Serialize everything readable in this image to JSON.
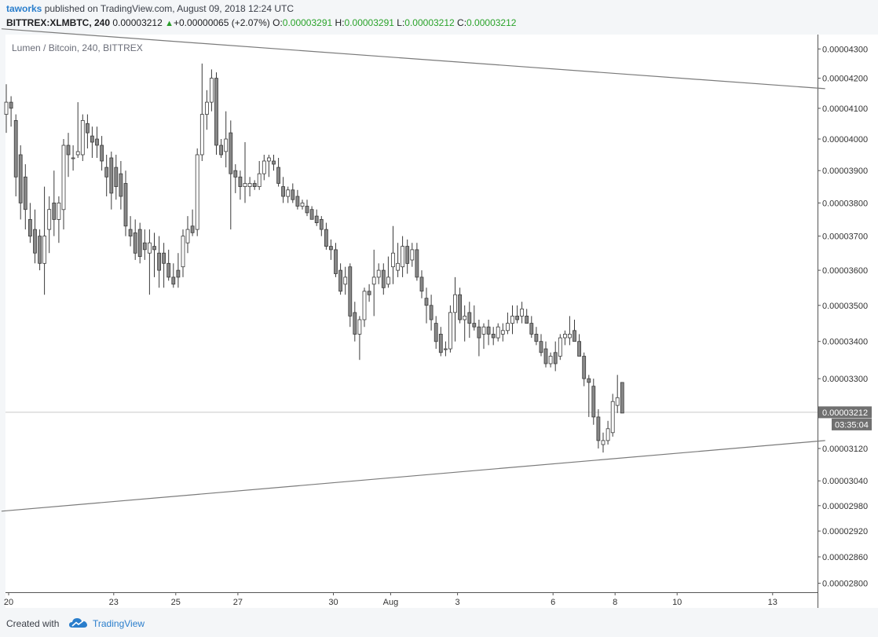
{
  "header": {
    "author": "taworks",
    "published_text": "published on TradingView.com, August 09, 2018 12:24 UTC",
    "symbol": "BITTREX:XLMBTC, 240",
    "last_price": "0.00003212",
    "change_arrow": "▲",
    "change": "+0.00000065 (+2.07%)",
    "o_label": "O:",
    "o_value": "0.00003291",
    "h_label": "H:",
    "h_value": "0.00003291",
    "l_label": "L:",
    "l_value": "0.00003212",
    "c_label": "C:",
    "c_value": "0.00003212"
  },
  "footer": {
    "created_with": "Created with",
    "brand": "TradingView"
  },
  "colors": {
    "up_candle": "#ffffff",
    "down_candle": "#888888",
    "candle_border": "#3a3a3a",
    "trendline": "#7a7a7a",
    "price_tag": "#707070"
  },
  "chart_data": {
    "type": "candlestick",
    "title": "Lumen / Bitcoin, 240, BITTREX",
    "y_scale": "log",
    "ylim": [
      2.78e-05,
      4.35e-05
    ],
    "y_ticks": [
      "0.00004300",
      "0.00004200",
      "0.00004100",
      "0.00004000",
      "0.00003900",
      "0.00003800",
      "0.00003700",
      "0.00003600",
      "0.00003500",
      "0.00003400",
      "0.00003300",
      "0.00003120",
      "0.00003040",
      "0.00002980",
      "0.00002920",
      "0.00002860",
      "0.00002800"
    ],
    "x_ticks": [
      {
        "label": "20",
        "bar": 0.5
      },
      {
        "label": "23",
        "bar": 22.5
      },
      {
        "label": "25",
        "bar": 35.5
      },
      {
        "label": "27",
        "bar": 48.5
      },
      {
        "label": "30",
        "bar": 68.5
      },
      {
        "label": "Aug",
        "bar": 80.5
      },
      {
        "label": "3",
        "bar": 94.5
      },
      {
        "label": "6",
        "bar": 114.5
      },
      {
        "label": "8",
        "bar": 127.5
      },
      {
        "label": "10",
        "bar": 140.5
      },
      {
        "label": "13",
        "bar": 160.5
      }
    ],
    "current_price_label": "0.00003212",
    "current_price": 3.212e-05,
    "countdown": "03:35:04",
    "candles": [
      [
        4.08,
        4.18,
        4.02,
        4.12
      ],
      [
        4.12,
        4.14,
        4.04,
        4.1
      ],
      [
        4.06,
        4.08,
        3.82,
        3.88
      ],
      [
        3.95,
        3.98,
        3.75,
        3.8
      ],
      [
        3.88,
        3.92,
        3.72,
        3.78
      ],
      [
        3.75,
        3.8,
        3.68,
        3.7
      ],
      [
        3.72,
        3.78,
        3.62,
        3.65
      ],
      [
        3.7,
        3.72,
        3.6,
        3.62
      ],
      [
        3.62,
        3.85,
        3.53,
        3.7
      ],
      [
        3.72,
        3.82,
        3.65,
        3.78
      ],
      [
        3.8,
        3.9,
        3.7,
        3.75
      ],
      [
        3.75,
        3.82,
        3.68,
        3.8
      ],
      [
        3.78,
        4.0,
        3.72,
        3.98
      ],
      [
        3.98,
        4.02,
        3.88,
        3.95
      ],
      [
        3.94,
        3.98,
        3.9,
        3.94
      ],
      [
        3.95,
        4.12,
        3.94,
        3.96
      ],
      [
        3.95,
        4.08,
        3.93,
        4.06
      ],
      [
        4.05,
        4.08,
        3.97,
        4.02
      ],
      [
        4.01,
        4.04,
        3.94,
        3.99
      ],
      [
        4.0,
        4.04,
        3.94,
        3.98
      ],
      [
        3.98,
        4.01,
        3.9,
        3.93
      ],
      [
        3.91,
        3.95,
        3.82,
        3.88
      ],
      [
        3.94,
        3.96,
        3.78,
        3.83
      ],
      [
        3.91,
        3.95,
        3.81,
        3.85
      ],
      [
        3.89,
        3.93,
        3.78,
        3.82
      ],
      [
        3.86,
        3.9,
        3.7,
        3.73
      ],
      [
        3.72,
        3.76,
        3.67,
        3.7
      ],
      [
        3.71,
        3.75,
        3.63,
        3.65
      ],
      [
        3.72,
        3.74,
        3.62,
        3.64
      ],
      [
        3.68,
        3.72,
        3.63,
        3.66
      ],
      [
        3.65,
        3.72,
        3.53,
        3.68
      ],
      [
        3.67,
        3.71,
        3.58,
        3.66
      ],
      [
        3.65,
        3.7,
        3.55,
        3.6
      ],
      [
        3.65,
        3.68,
        3.55,
        3.62
      ],
      [
        3.62,
        3.66,
        3.57,
        3.58
      ],
      [
        3.58,
        3.62,
        3.55,
        3.56
      ],
      [
        3.6,
        3.65,
        3.55,
        3.58
      ],
      [
        3.61,
        3.72,
        3.58,
        3.7
      ],
      [
        3.68,
        3.76,
        3.65,
        3.72
      ],
      [
        3.73,
        3.78,
        3.7,
        3.71
      ],
      [
        3.72,
        3.97,
        3.7,
        3.95
      ],
      [
        3.95,
        4.25,
        3.93,
        4.08
      ],
      [
        4.08,
        4.16,
        4.03,
        4.12
      ],
      [
        4.12,
        4.23,
        4.09,
        4.2
      ],
      [
        4.2,
        4.22,
        3.95,
        3.98
      ],
      [
        3.98,
        4.0,
        3.94,
        3.95
      ],
      [
        3.96,
        4.09,
        3.91,
        4.0
      ],
      [
        4.02,
        4.06,
        3.72,
        3.89
      ],
      [
        3.9,
        3.92,
        3.83,
        3.88
      ],
      [
        3.88,
        3.9,
        3.81,
        3.85
      ],
      [
        3.85,
        3.99,
        3.8,
        3.86
      ],
      [
        3.85,
        3.88,
        3.82,
        3.86
      ],
      [
        3.86,
        3.87,
        3.84,
        3.85
      ],
      [
        3.85,
        3.93,
        3.84,
        3.89
      ],
      [
        3.89,
        3.95,
        3.87,
        3.93
      ],
      [
        3.93,
        3.95,
        3.88,
        3.94
      ],
      [
        3.93,
        3.95,
        3.9,
        3.92
      ],
      [
        3.91,
        3.94,
        3.85,
        3.86
      ],
      [
        3.85,
        3.88,
        3.8,
        3.82
      ],
      [
        3.82,
        3.85,
        3.8,
        3.84
      ],
      [
        3.84,
        3.86,
        3.8,
        3.81
      ],
      [
        3.82,
        3.84,
        3.78,
        3.79
      ],
      [
        3.79,
        3.81,
        3.78,
        3.8
      ],
      [
        3.79,
        3.81,
        3.76,
        3.77
      ],
      [
        3.78,
        3.79,
        3.75,
        3.75
      ],
      [
        3.76,
        3.78,
        3.73,
        3.74
      ],
      [
        3.75,
        3.76,
        3.7,
        3.72
      ],
      [
        3.72,
        3.74,
        3.66,
        3.67
      ],
      [
        3.67,
        3.69,
        3.63,
        3.66
      ],
      [
        3.66,
        3.68,
        3.58,
        3.59
      ],
      [
        3.6,
        3.62,
        3.53,
        3.54
      ],
      [
        3.56,
        3.61,
        3.53,
        3.58
      ],
      [
        3.61,
        3.62,
        3.44,
        3.47
      ],
      [
        3.48,
        3.51,
        3.4,
        3.42
      ],
      [
        3.42,
        3.47,
        3.35,
        3.46
      ],
      [
        3.46,
        3.55,
        3.44,
        3.54
      ],
      [
        3.54,
        3.56,
        3.51,
        3.53
      ],
      [
        3.56,
        3.66,
        3.47,
        3.58
      ],
      [
        3.58,
        3.62,
        3.56,
        3.6
      ],
      [
        3.6,
        3.62,
        3.53,
        3.55
      ],
      [
        3.56,
        3.64,
        3.55,
        3.58
      ],
      [
        3.61,
        3.73,
        3.56,
        3.65
      ],
      [
        3.6,
        3.68,
        3.58,
        3.62
      ],
      [
        3.61,
        3.7,
        3.58,
        3.67
      ],
      [
        3.67,
        3.69,
        3.59,
        3.62
      ],
      [
        3.63,
        3.68,
        3.61,
        3.66
      ],
      [
        3.66,
        3.68,
        3.57,
        3.58
      ],
      [
        3.58,
        3.6,
        3.52,
        3.54
      ],
      [
        3.52,
        3.55,
        3.45,
        3.5
      ],
      [
        3.5,
        3.53,
        3.43,
        3.46
      ],
      [
        3.45,
        3.47,
        3.38,
        3.4
      ],
      [
        3.42,
        3.44,
        3.36,
        3.37
      ],
      [
        3.38,
        3.4,
        3.36,
        3.38
      ],
      [
        3.38,
        3.5,
        3.37,
        3.48
      ],
      [
        3.48,
        3.58,
        3.4,
        3.53
      ],
      [
        3.53,
        3.55,
        3.45,
        3.46
      ],
      [
        3.46,
        3.5,
        3.4,
        3.47
      ],
      [
        3.48,
        3.51,
        3.41,
        3.45
      ],
      [
        3.45,
        3.5,
        3.43,
        3.44
      ],
      [
        3.44,
        3.46,
        3.36,
        3.41
      ],
      [
        3.42,
        3.45,
        3.38,
        3.44
      ],
      [
        3.44,
        3.46,
        3.39,
        3.42
      ],
      [
        3.42,
        3.44,
        3.39,
        3.41
      ],
      [
        3.41,
        3.45,
        3.4,
        3.44
      ],
      [
        3.42,
        3.45,
        3.4,
        3.43
      ],
      [
        3.43,
        3.48,
        3.42,
        3.45
      ],
      [
        3.45,
        3.5,
        3.42,
        3.47
      ],
      [
        3.47,
        3.5,
        3.45,
        3.46
      ],
      [
        3.47,
        3.51,
        3.45,
        3.49
      ],
      [
        3.47,
        3.49,
        3.45,
        3.45
      ],
      [
        3.45,
        3.47,
        3.41,
        3.42
      ],
      [
        3.42,
        3.44,
        3.39,
        3.4
      ],
      [
        3.4,
        3.42,
        3.36,
        3.37
      ],
      [
        3.38,
        3.4,
        3.33,
        3.34
      ],
      [
        3.34,
        3.37,
        3.33,
        3.36
      ],
      [
        3.37,
        3.4,
        3.32,
        3.34
      ],
      [
        3.36,
        3.42,
        3.35,
        3.41
      ],
      [
        3.41,
        3.43,
        3.39,
        3.42
      ],
      [
        3.41,
        3.47,
        3.39,
        3.42
      ],
      [
        3.43,
        3.46,
        3.4,
        3.4
      ],
      [
        3.4,
        3.42,
        3.36,
        3.36
      ],
      [
        3.36,
        3.37,
        3.28,
        3.3
      ],
      [
        3.3,
        3.31,
        3.2,
        3.29
      ],
      [
        3.28,
        3.3,
        3.18,
        3.2
      ],
      [
        3.2,
        3.22,
        3.12,
        3.14
      ],
      [
        3.13,
        3.16,
        3.11,
        3.14
      ],
      [
        3.14,
        3.19,
        3.13,
        3.17
      ],
      [
        3.16,
        3.26,
        3.15,
        3.24
      ],
      [
        3.23,
        3.31,
        3.21,
        3.25
      ],
      [
        3.29,
        3.29,
        3.21,
        3.21
      ]
    ],
    "trendlines": [
      {
        "x1": -1,
        "y1": 4.37e-05,
        "x2": 171.5,
        "y2": 4.165e-05
      },
      {
        "x1": -1,
        "y1": 2.967e-05,
        "x2": 171.5,
        "y2": 3.14e-05
      }
    ]
  }
}
